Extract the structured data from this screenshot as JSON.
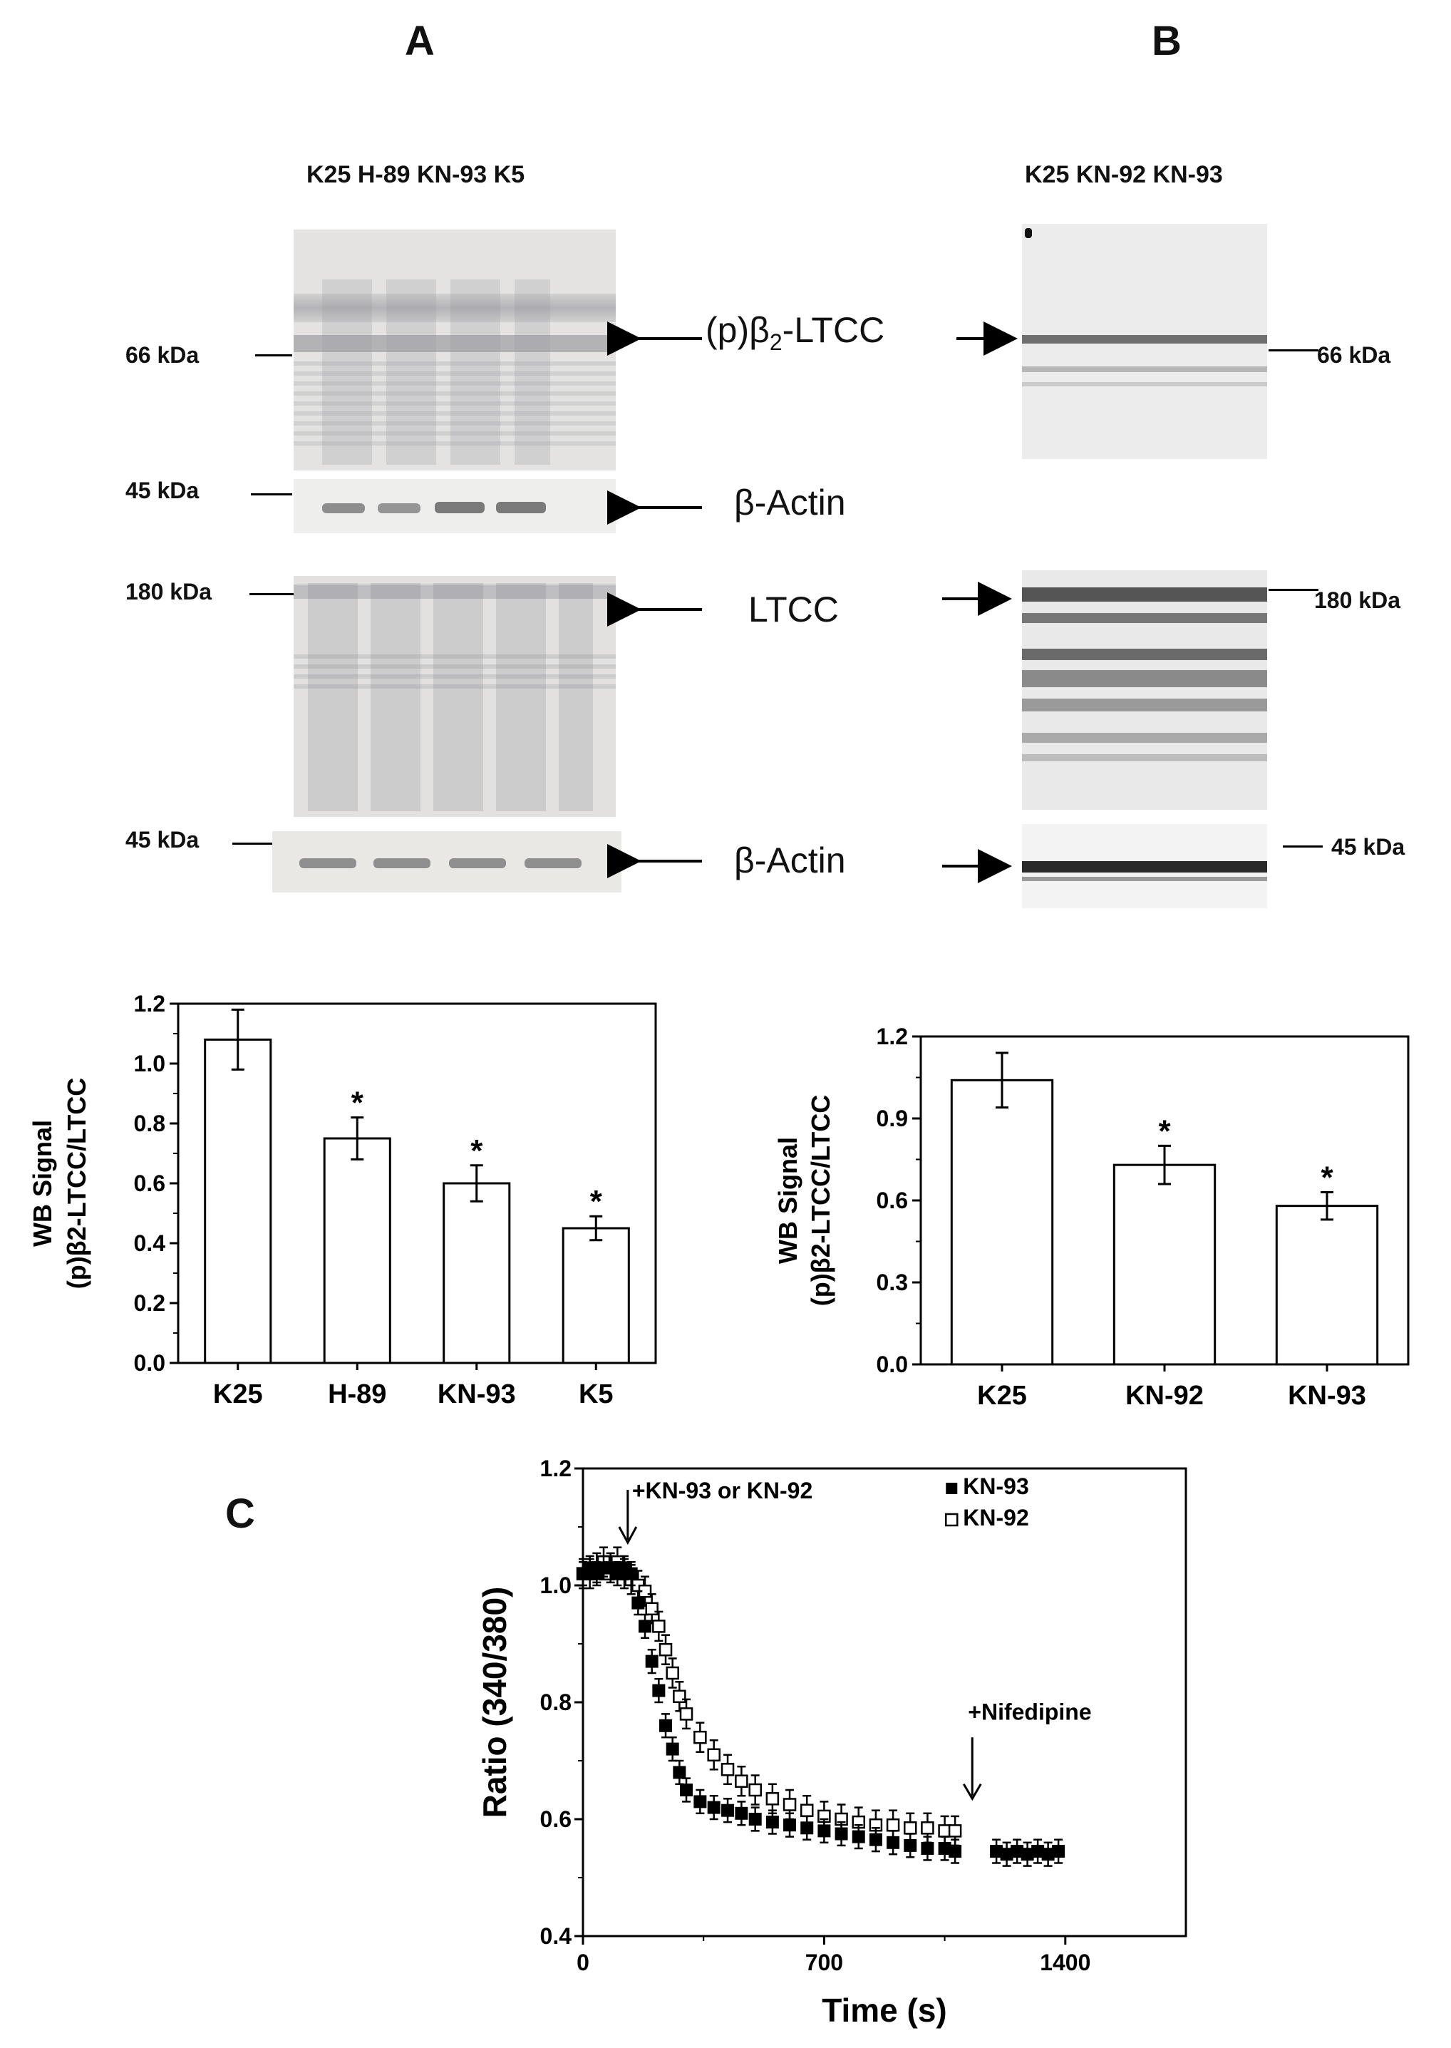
{
  "panels": {
    "a_letter": "A",
    "b_letter": "B",
    "c_letter": "C"
  },
  "blots": {
    "a_lanes": "K25 H-89 KN-93 K5",
    "b_lanes": "K25 KN-92 KN-93",
    "labels": {
      "pb2": "(p)β",
      "pb2_sub": "2",
      "pb2_suffix": "-LTCC",
      "actin1": "β-Actin",
      "ltcc": "LTCC",
      "actin2": "β-Actin"
    },
    "markers": {
      "a_66": "66 kDa",
      "a_45_top": "45 kDa",
      "a_180": "180 kDa",
      "a_45_bottom": "45 kDa",
      "b_66": "66 kDa",
      "b_180": "180 kDa",
      "b_45": "45 kDa"
    }
  },
  "colors": {
    "blot_bg": "#dcdcdc",
    "band_dark": "#555555",
    "bar_fill": "#ffffff",
    "axis": "#000000"
  },
  "chart_data": [
    {
      "type": "bar",
      "panel": "A",
      "categories": [
        "K25",
        "H-89",
        "KN-93",
        "K5"
      ],
      "values": [
        1.08,
        0.75,
        0.6,
        0.45
      ],
      "errors": [
        0.1,
        0.07,
        0.06,
        0.04
      ],
      "significance": [
        "",
        "*",
        "*",
        "*"
      ],
      "ylabel_line1": "WB Signal",
      "ylabel_line2": "(p)β2-LTCC/LTCC",
      "ylim": [
        0.0,
        1.2
      ],
      "yticks": [
        "0.0",
        "0.2",
        "0.4",
        "0.6",
        "0.8",
        "1.0",
        "1.2"
      ],
      "ytick_values": [
        0.0,
        0.2,
        0.4,
        0.6,
        0.8,
        1.0,
        1.2
      ]
    },
    {
      "type": "bar",
      "panel": "B",
      "categories": [
        "K25",
        "KN-92",
        "KN-93"
      ],
      "values": [
        1.04,
        0.73,
        0.58
      ],
      "errors": [
        0.1,
        0.07,
        0.05
      ],
      "significance": [
        "",
        "*",
        "*"
      ],
      "ylabel_line1": "WB Signal",
      "ylabel_line2": "(p)β2-LTCC/LTCC",
      "ylim": [
        0.0,
        1.2
      ],
      "yticks": [
        "0.0",
        "0.3",
        "0.6",
        "0.9",
        "1.2"
      ],
      "ytick_values": [
        0.0,
        0.3,
        0.6,
        0.9,
        1.2
      ]
    },
    {
      "type": "scatter",
      "panel": "C",
      "xlabel": "Time (s)",
      "ylabel": "Ratio (340/380)",
      "xlim": [
        0,
        1750
      ],
      "ylim": [
        0.4,
        1.2
      ],
      "xticks": [
        "0",
        "700",
        "1400"
      ],
      "xtick_values": [
        0,
        700,
        1400
      ],
      "yticks": [
        "0.4",
        "0.6",
        "0.8",
        "1.0",
        "1.2"
      ],
      "ytick_values": [
        0.4,
        0.6,
        0.8,
        1.0,
        1.2
      ],
      "annotations": {
        "drug": "+KN-93 or KN-92",
        "drug_time": 130,
        "nifedipine": "+Nifedipine",
        "nifedipine_time": 1130
      },
      "legend": [
        "KN-93",
        "KN-92"
      ],
      "legend_position": "top-right",
      "series": [
        {
          "name": "KN-93",
          "marker": "filled-square",
          "x": [
            0,
            20,
            40,
            60,
            80,
            100,
            120,
            140,
            160,
            180,
            200,
            220,
            240,
            260,
            280,
            300,
            340,
            380,
            420,
            460,
            500,
            550,
            600,
            650,
            700,
            750,
            800,
            850,
            900,
            950,
            1000,
            1050,
            1080,
            1200,
            1230,
            1260,
            1290,
            1320,
            1350,
            1380
          ],
          "y": [
            1.02,
            1.03,
            1.02,
            1.03,
            1.03,
            1.02,
            1.03,
            1.02,
            0.97,
            0.93,
            0.87,
            0.82,
            0.76,
            0.72,
            0.68,
            0.65,
            0.63,
            0.62,
            0.615,
            0.61,
            0.6,
            0.595,
            0.59,
            0.585,
            0.58,
            0.575,
            0.57,
            0.565,
            0.56,
            0.555,
            0.55,
            0.55,
            0.545,
            0.545,
            0.54,
            0.545,
            0.54,
            0.545,
            0.54,
            0.545
          ],
          "error": 0.02
        },
        {
          "name": "KN-92",
          "marker": "open-square",
          "x": [
            0,
            20,
            40,
            60,
            80,
            100,
            120,
            140,
            160,
            180,
            200,
            220,
            240,
            260,
            280,
            300,
            340,
            380,
            420,
            460,
            500,
            550,
            600,
            650,
            700,
            750,
            800,
            850,
            900,
            950,
            1000,
            1050,
            1080
          ],
          "y": [
            1.02,
            1.02,
            1.03,
            1.04,
            1.03,
            1.04,
            1.02,
            1.01,
            1.0,
            0.99,
            0.96,
            0.93,
            0.89,
            0.85,
            0.81,
            0.78,
            0.74,
            0.71,
            0.685,
            0.665,
            0.65,
            0.635,
            0.625,
            0.615,
            0.605,
            0.6,
            0.595,
            0.59,
            0.59,
            0.585,
            0.585,
            0.58,
            0.58
          ],
          "error": 0.025
        }
      ]
    }
  ]
}
